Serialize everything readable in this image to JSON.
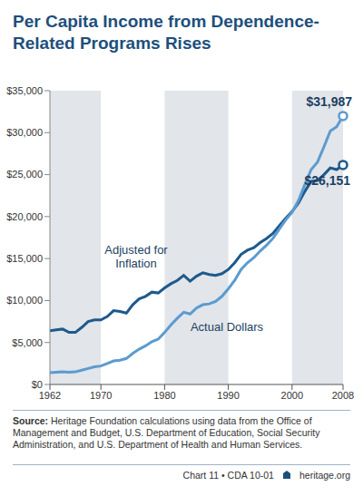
{
  "chart_data": {
    "type": "line",
    "title": "Per Capita Income from Dependence-Related Programs Rises",
    "x": [
      1962,
      1963,
      1964,
      1965,
      1966,
      1967,
      1968,
      1969,
      1970,
      1971,
      1972,
      1973,
      1974,
      1975,
      1976,
      1977,
      1978,
      1979,
      1980,
      1981,
      1982,
      1983,
      1984,
      1985,
      1986,
      1987,
      1988,
      1989,
      1990,
      1991,
      1992,
      1993,
      1994,
      1995,
      1996,
      1997,
      1998,
      1999,
      2000,
      2001,
      2002,
      2003,
      2004,
      2005,
      2006,
      2007,
      2008
    ],
    "series": [
      {
        "name": "Adjusted for Inflation",
        "color": "#1d5a8c",
        "values": [
          6400,
          6500,
          6600,
          6200,
          6200,
          6800,
          7500,
          7700,
          7700,
          8100,
          8800,
          8700,
          8500,
          9500,
          10200,
          10500,
          11000,
          10900,
          11500,
          12000,
          12400,
          13000,
          12300,
          12900,
          13300,
          13100,
          13000,
          13200,
          13700,
          14500,
          15500,
          16000,
          16300,
          16900,
          17400,
          18000,
          18900,
          19800,
          20600,
          21600,
          23000,
          24200,
          24300,
          25000,
          25800,
          25600,
          26151
        ]
      },
      {
        "name": "Actual Dollars",
        "color": "#5b9bd0",
        "values": [
          1400,
          1450,
          1500,
          1450,
          1500,
          1700,
          1900,
          2100,
          2200,
          2500,
          2800,
          2900,
          3100,
          3700,
          4200,
          4600,
          5100,
          5400,
          6200,
          7100,
          7900,
          8600,
          8400,
          9100,
          9500,
          9600,
          9900,
          10500,
          11400,
          12400,
          13700,
          14500,
          15100,
          15900,
          16600,
          17400,
          18500,
          19600,
          20500,
          21900,
          23800,
          25600,
          26500,
          28300,
          30200,
          30700,
          31987
        ]
      }
    ],
    "xlim": [
      1962,
      2008
    ],
    "xticks": [
      1962,
      1970,
      1980,
      1990,
      2000,
      2008
    ],
    "ylim": [
      0,
      35000
    ],
    "yticks": [
      {
        "value": 0,
        "label": "$0"
      },
      {
        "value": 5000,
        "label": "$5,000"
      },
      {
        "value": 10000,
        "label": "$10,000"
      },
      {
        "value": 15000,
        "label": "$15,000"
      },
      {
        "value": 20000,
        "label": "$20,000"
      },
      {
        "value": 25000,
        "label": "$25,000"
      },
      {
        "value": 30000,
        "label": "$30,000"
      },
      {
        "value": 35000,
        "label": "$35,000"
      }
    ],
    "grid": false,
    "annotations": [
      {
        "text": "$31,987",
        "x": 2008,
        "y": 31987
      },
      {
        "text": "$26,151",
        "x": 2008,
        "y": 26151
      }
    ],
    "source": "Source: Heritage Foundation calculations using data from the Office of Management and Budget, U.S. Department of Education, Social Security Administration, and U.S. Department of Health and Human Services.",
    "footer": [
      "Chart 11 • CDA 10-01",
      "heritage.org"
    ]
  }
}
